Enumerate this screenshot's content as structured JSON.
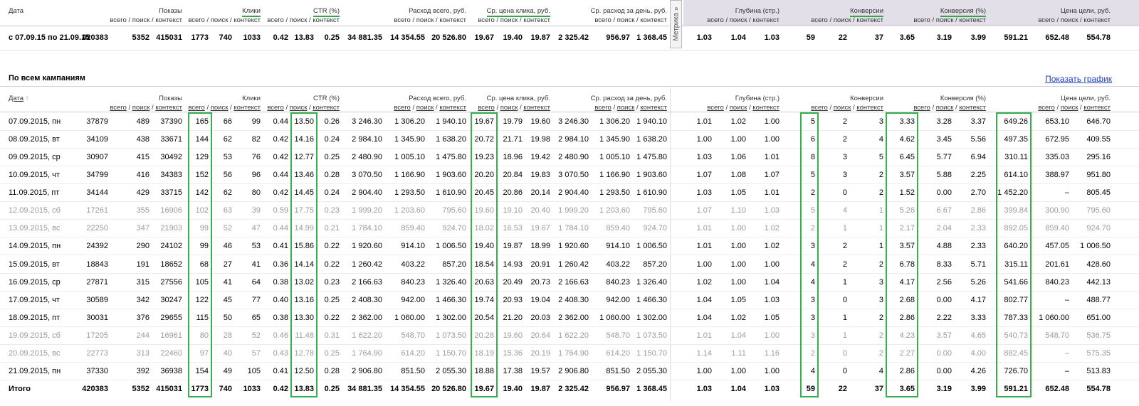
{
  "columns": {
    "sub_labels": [
      "всего",
      "поиск",
      "контекст"
    ],
    "separator": " / ",
    "groups": [
      {
        "title": "Показы"
      },
      {
        "title": "Клики",
        "underline": true,
        "boxed_column": 0
      },
      {
        "title": "CTR (%)",
        "underline": true,
        "boxed_column": 1
      },
      {
        "title": "Расход всего, руб."
      },
      {
        "title": "Ср. цена клика, руб.",
        "underline": true,
        "boxed_column": 0
      },
      {
        "title": "Ср. расход за день, руб."
      },
      {
        "title": "Глубина (стр.)"
      },
      {
        "title": "Конверсии",
        "underline": true,
        "boxed_column": 0
      },
      {
        "title": "Конверсия (%)",
        "underline": true,
        "boxed_column": 0
      },
      {
        "title": "Цена цели, руб.",
        "boxed_column": 0
      }
    ]
  },
  "summary": {
    "header_date": "Дата",
    "metrika_button": "Метрика »",
    "row": {
      "date": "с 07.09.15 по 21.09.15",
      "cells": [
        "420383",
        "5352",
        "415031",
        "1773",
        "740",
        "1033",
        "0.42",
        "13.83",
        "0.25",
        "34 881.35",
        "14 354.55",
        "20 526.80",
        "19.67",
        "19.40",
        "19.87",
        "2 325.42",
        "956.97",
        "1 368.45",
        "1.03",
        "1.04",
        "1.03",
        "59",
        "22",
        "37",
        "3.65",
        "3.19",
        "3.99",
        "591.21",
        "652.48",
        "554.78"
      ]
    }
  },
  "campaigns": {
    "title": "По всем кампаниям",
    "show_chart_link": "Показать график",
    "header_date": "Дата",
    "sort_indicator": "↑",
    "rows": [
      {
        "date": "07.09.2015, пн",
        "cells": [
          "37879",
          "489",
          "37390",
          "165",
          "66",
          "99",
          "0.44",
          "13.50",
          "0.26",
          "3 246.30",
          "1 306.20",
          "1 940.10",
          "19.67",
          "19.79",
          "19.60",
          "3 246.30",
          "1 306.20",
          "1 940.10",
          "1.01",
          "1.02",
          "1.00",
          "5",
          "2",
          "3",
          "3.33",
          "3.28",
          "3.37",
          "649.26",
          "653.10",
          "646.70"
        ]
      },
      {
        "date": "08.09.2015, вт",
        "cells": [
          "34109",
          "438",
          "33671",
          "144",
          "62",
          "82",
          "0.42",
          "14.16",
          "0.24",
          "2 984.10",
          "1 345.90",
          "1 638.20",
          "20.72",
          "21.71",
          "19.98",
          "2 984.10",
          "1 345.90",
          "1 638.20",
          "1.00",
          "1.00",
          "1.00",
          "6",
          "2",
          "4",
          "4.62",
          "3.45",
          "5.56",
          "497.35",
          "672.95",
          "409.55"
        ]
      },
      {
        "date": "09.09.2015, ср",
        "cells": [
          "30907",
          "415",
          "30492",
          "129",
          "53",
          "76",
          "0.42",
          "12.77",
          "0.25",
          "2 480.90",
          "1 005.10",
          "1 475.80",
          "19.23",
          "18.96",
          "19.42",
          "2 480.90",
          "1 005.10",
          "1 475.80",
          "1.03",
          "1.06",
          "1.01",
          "8",
          "3",
          "5",
          "6.45",
          "5.77",
          "6.94",
          "310.11",
          "335.03",
          "295.16"
        ]
      },
      {
        "date": "10.09.2015, чт",
        "cells": [
          "34799",
          "416",
          "34383",
          "152",
          "56",
          "96",
          "0.44",
          "13.46",
          "0.28",
          "3 070.50",
          "1 166.90",
          "1 903.60",
          "20.20",
          "20.84",
          "19.83",
          "3 070.50",
          "1 166.90",
          "1 903.60",
          "1.07",
          "1.08",
          "1.07",
          "5",
          "3",
          "2",
          "3.57",
          "5.88",
          "2.25",
          "614.10",
          "388.97",
          "951.80"
        ]
      },
      {
        "date": "11.09.2015, пт",
        "cells": [
          "34144",
          "429",
          "33715",
          "142",
          "62",
          "80",
          "0.42",
          "14.45",
          "0.24",
          "2 904.40",
          "1 293.50",
          "1 610.90",
          "20.45",
          "20.86",
          "20.14",
          "2 904.40",
          "1 293.50",
          "1 610.90",
          "1.03",
          "1.05",
          "1.01",
          "2",
          "0",
          "2",
          "1.52",
          "0.00",
          "2.70",
          "1 452.20",
          "–",
          "805.45"
        ]
      },
      {
        "date": "12.09.2015, сб",
        "muted": true,
        "cells": [
          "17261",
          "355",
          "16906",
          "102",
          "63",
          "39",
          "0.59",
          "17.75",
          "0.23",
          "1 999.20",
          "1 203.60",
          "795.60",
          "19.60",
          "19.10",
          "20.40",
          "1 999.20",
          "1 203.60",
          "795.60",
          "1.07",
          "1.10",
          "1.03",
          "5",
          "4",
          "1",
          "5.26",
          "6.67",
          "2.86",
          "399.84",
          "300.90",
          "795.60"
        ]
      },
      {
        "date": "13.09.2015, вс",
        "muted": true,
        "cells": [
          "22250",
          "347",
          "21903",
          "99",
          "52",
          "47",
          "0.44",
          "14.99",
          "0.21",
          "1 784.10",
          "859.40",
          "924.70",
          "18.02",
          "16.53",
          "19.67",
          "1 784.10",
          "859.40",
          "924.70",
          "1.01",
          "1.00",
          "1.02",
          "2",
          "1",
          "1",
          "2.17",
          "2.04",
          "2.33",
          "892.05",
          "859.40",
          "924.70"
        ]
      },
      {
        "date": "14.09.2015, пн",
        "cells": [
          "24392",
          "290",
          "24102",
          "99",
          "46",
          "53",
          "0.41",
          "15.86",
          "0.22",
          "1 920.60",
          "914.10",
          "1 006.50",
          "19.40",
          "19.87",
          "18.99",
          "1 920.60",
          "914.10",
          "1 006.50",
          "1.01",
          "1.00",
          "1.02",
          "3",
          "2",
          "1",
          "3.57",
          "4.88",
          "2.33",
          "640.20",
          "457.05",
          "1 006.50"
        ]
      },
      {
        "date": "15.09.2015, вт",
        "cells": [
          "18843",
          "191",
          "18652",
          "68",
          "27",
          "41",
          "0.36",
          "14.14",
          "0.22",
          "1 260.42",
          "403.22",
          "857.20",
          "18.54",
          "14.93",
          "20.91",
          "1 260.42",
          "403.22",
          "857.20",
          "1.00",
          "1.00",
          "1.00",
          "4",
          "2",
          "2",
          "6.78",
          "8.33",
          "5.71",
          "315.11",
          "201.61",
          "428.60"
        ]
      },
      {
        "date": "16.09.2015, ср",
        "cells": [
          "27871",
          "315",
          "27556",
          "105",
          "41",
          "64",
          "0.38",
          "13.02",
          "0.23",
          "2 166.63",
          "840.23",
          "1 326.40",
          "20.63",
          "20.49",
          "20.73",
          "2 166.63",
          "840.23",
          "1 326.40",
          "1.02",
          "1.00",
          "1.04",
          "4",
          "1",
          "3",
          "4.17",
          "2.56",
          "5.26",
          "541.66",
          "840.23",
          "442.13"
        ]
      },
      {
        "date": "17.09.2015, чт",
        "cells": [
          "30589",
          "342",
          "30247",
          "122",
          "45",
          "77",
          "0.40",
          "13.16",
          "0.25",
          "2 408.30",
          "942.00",
          "1 466.30",
          "19.74",
          "20.93",
          "19.04",
          "2 408.30",
          "942.00",
          "1 466.30",
          "1.04",
          "1.05",
          "1.03",
          "3",
          "0",
          "3",
          "2.68",
          "0.00",
          "4.17",
          "802.77",
          "–",
          "488.77"
        ]
      },
      {
        "date": "18.09.2015, пт",
        "cells": [
          "30031",
          "376",
          "29655",
          "115",
          "50",
          "65",
          "0.38",
          "13.30",
          "0.22",
          "2 362.00",
          "1 060.00",
          "1 302.00",
          "20.54",
          "21.20",
          "20.03",
          "2 362.00",
          "1 060.00",
          "1 302.00",
          "1.04",
          "1.02",
          "1.05",
          "3",
          "1",
          "2",
          "2.86",
          "2.22",
          "3.33",
          "787.33",
          "1 060.00",
          "651.00"
        ]
      },
      {
        "date": "19.09.2015, сб",
        "muted": true,
        "cells": [
          "17205",
          "244",
          "16961",
          "80",
          "28",
          "52",
          "0.46",
          "11.48",
          "0.31",
          "1 622.20",
          "548.70",
          "1 073.50",
          "20.28",
          "19.60",
          "20.64",
          "1 622.20",
          "548.70",
          "1 073.50",
          "1.01",
          "1.04",
          "1.00",
          "3",
          "1",
          "2",
          "4.23",
          "3.57",
          "4.65",
          "540.73",
          "548.70",
          "536.75"
        ]
      },
      {
        "date": "20.09.2015, вс",
        "muted": true,
        "cells": [
          "22773",
          "313",
          "22460",
          "97",
          "40",
          "57",
          "0.43",
          "12.78",
          "0.25",
          "1 764.90",
          "614.20",
          "1 150.70",
          "18.19",
          "15.36",
          "20.19",
          "1 764.90",
          "614.20",
          "1 150.70",
          "1.14",
          "1.11",
          "1.16",
          "2",
          "0",
          "2",
          "2.27",
          "0.00",
          "4.00",
          "882.45",
          "–",
          "575.35"
        ]
      },
      {
        "date": "21.09.2015, пн",
        "cells": [
          "37330",
          "392",
          "36938",
          "154",
          "49",
          "105",
          "0.41",
          "12.50",
          "0.28",
          "2 906.80",
          "851.50",
          "2 055.30",
          "18.88",
          "17.38",
          "19.57",
          "2 906.80",
          "851.50",
          "2 055.30",
          "1.00",
          "1.00",
          "1.00",
          "4",
          "0",
          "4",
          "2.86",
          "0.00",
          "4.26",
          "726.70",
          "–",
          "513.83"
        ]
      }
    ],
    "total": {
      "label": "Итого",
      "cells": [
        "420383",
        "5352",
        "415031",
        "1773",
        "740",
        "1033",
        "0.42",
        "13.83",
        "0.25",
        "34 881.35",
        "14 354.55",
        "20 526.80",
        "19.67",
        "19.40",
        "19.87",
        "2 325.42",
        "956.97",
        "1 368.45",
        "1.03",
        "1.04",
        "1.03",
        "59",
        "22",
        "37",
        "3.65",
        "3.19",
        "3.99",
        "591.21",
        "652.48",
        "554.78"
      ]
    }
  }
}
